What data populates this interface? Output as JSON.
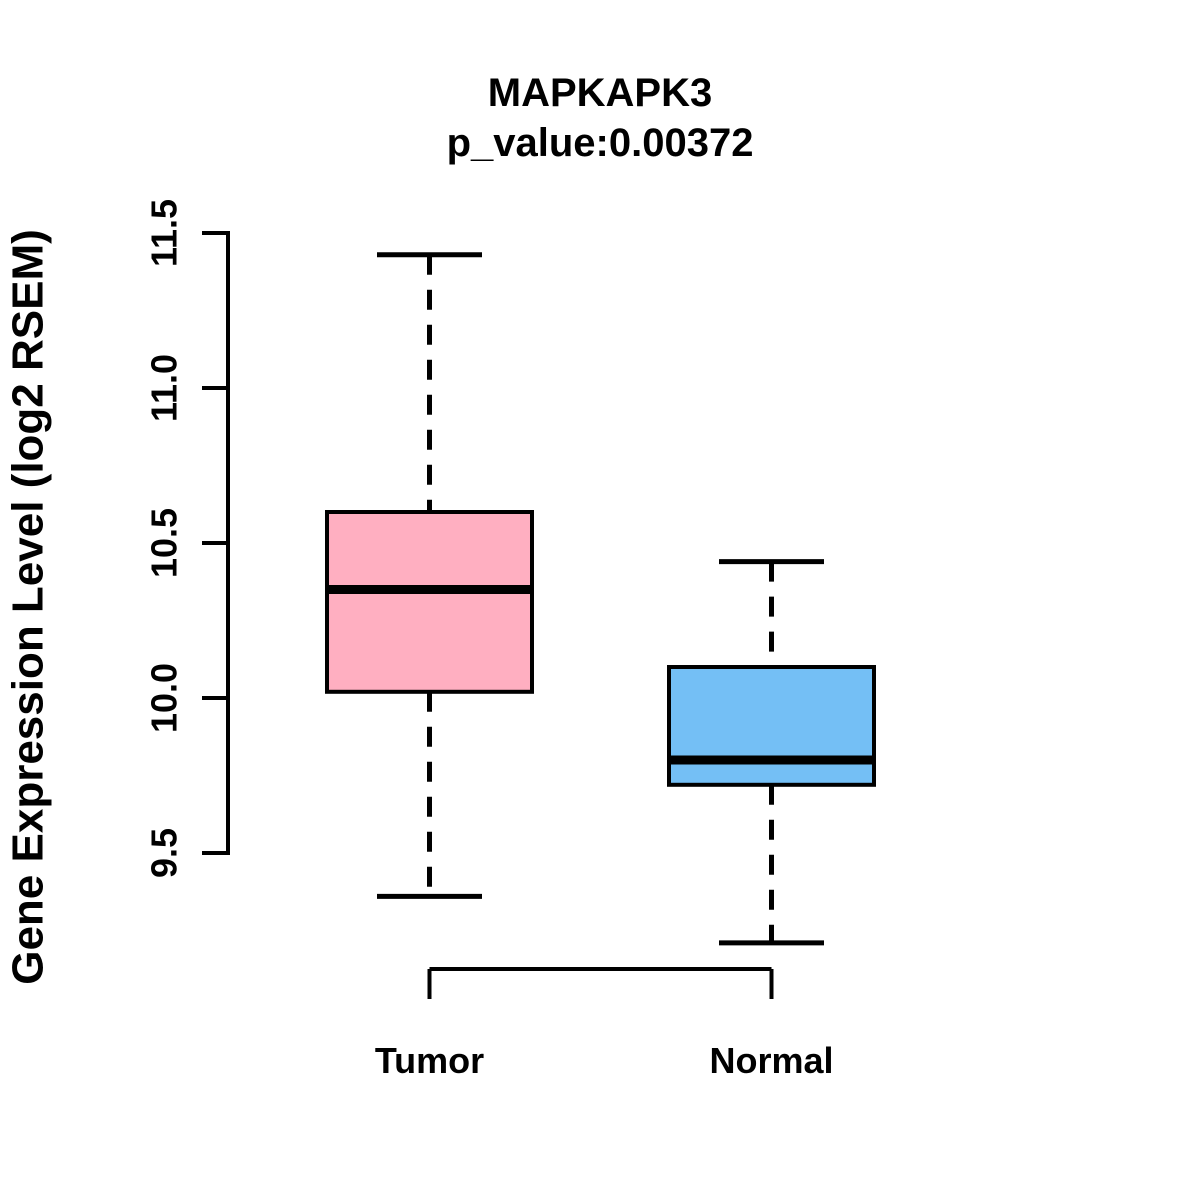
{
  "chart_data": {
    "type": "boxplot",
    "title": "MAPKAPK3",
    "subtitle": "p_value:0.00372",
    "ylabel": "Gene Expression Level (log2 RSEM)",
    "xlabel": "",
    "categories": [
      "Tumor",
      "Normal"
    ],
    "series": [
      {
        "name": "Tumor",
        "box_color": "#ffafc1",
        "lower_whisker": 9.36,
        "q1": 10.02,
        "median": 10.35,
        "q3": 10.6,
        "upper_whisker": 11.43,
        "outliers": []
      },
      {
        "name": "Normal",
        "box_color": "#74bff5",
        "lower_whisker": 9.21,
        "q1": 9.72,
        "median": 9.8,
        "q3": 10.1,
        "upper_whisker": 10.44,
        "outliers": []
      }
    ],
    "yticks": [
      9.5,
      10.0,
      10.5,
      11.0,
      11.5
    ],
    "ylim": [
      9.5,
      11.5
    ],
    "grid": false,
    "legend_position": "none",
    "colors": {
      "stroke": "#000000",
      "background": "#ffffff"
    }
  }
}
